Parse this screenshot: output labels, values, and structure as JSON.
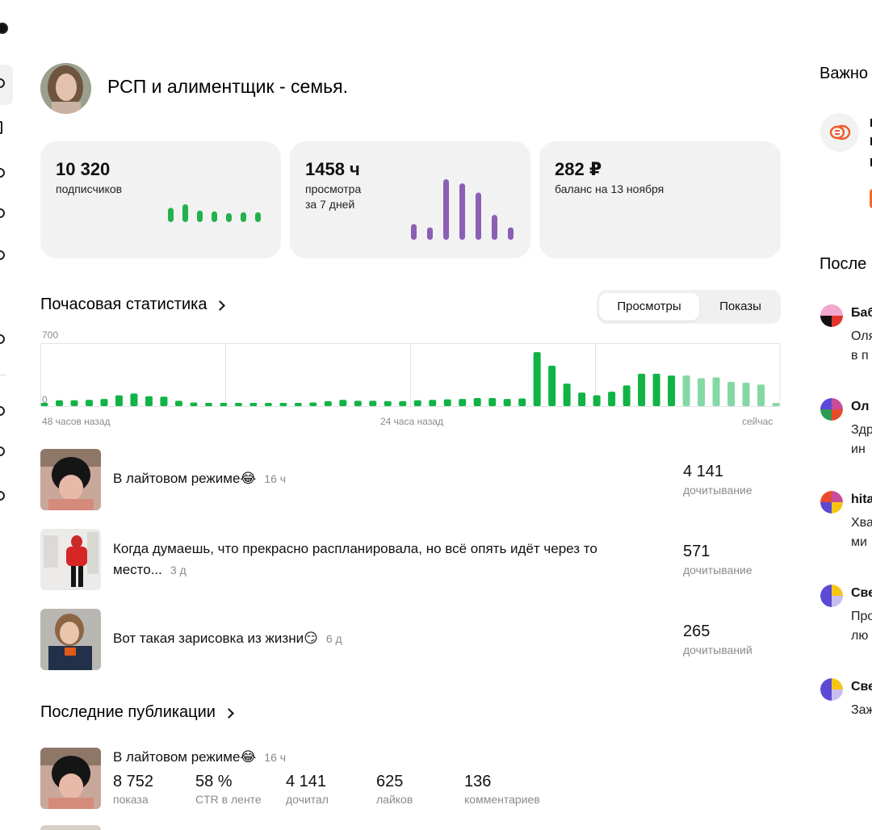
{
  "channel": {
    "title": "РСП и алиментщик - семья."
  },
  "cards": {
    "subscribers": {
      "value": "10 320",
      "label": "подписчиков"
    },
    "views": {
      "value": "1458 ч",
      "label_line1": "просмотра",
      "label_line2": "за 7 дней"
    },
    "balance": {
      "value": "282 ₽",
      "label": "баланс на 13 ноября"
    }
  },
  "hourly": {
    "title": "Почасовая статистика",
    "tabs": {
      "views": "Просмотры",
      "impressions": "Показы"
    },
    "active_tab": "views",
    "x_start": "48 часов назад",
    "x_mid": "24 часа назад",
    "x_end": "сейчас"
  },
  "chart_data": {
    "type": "bar",
    "ylim": [
      0,
      700
    ],
    "y_ticks": [
      "700",
      "0"
    ],
    "grid": true,
    "values": [
      30,
      65,
      65,
      70,
      80,
      120,
      140,
      110,
      105,
      60,
      40,
      35,
      30,
      30,
      30,
      30,
      30,
      35,
      40,
      55,
      70,
      60,
      60,
      55,
      55,
      65,
      70,
      75,
      80,
      90,
      90,
      80,
      85,
      600,
      450,
      250,
      150,
      120,
      160,
      230,
      360,
      360,
      340,
      340,
      310,
      320,
      270,
      260,
      240,
      30
    ],
    "faded_from_index": 43,
    "colors": {
      "primary": "#10b446",
      "faded": "#84d8a4"
    }
  },
  "popular_posts": [
    {
      "text": "В лайтовом режиме😂",
      "age": "16 ч",
      "count": "4 141",
      "count_label": "дочитывание"
    },
    {
      "text": "Когда думаешь, что прекрасно распланировала, но всё опять идёт через то место...",
      "age": "3 д",
      "count": "571",
      "count_label": "дочитывание"
    },
    {
      "text": "Вот такая зарисовка из жизни😏",
      "age": "6 д",
      "count": "265",
      "count_label": "дочитываний"
    }
  ],
  "latest": {
    "title": "Последние публикации",
    "post": {
      "title": "В лайтовом режиме😂",
      "age": "16 ч",
      "impressions": "8 752",
      "impressions_label": "показа",
      "ctr": "58 %",
      "ctr_label": "CTR в ленте",
      "reads": "4 141",
      "reads_label": "дочитал",
      "likes": "625",
      "likes_label": "лайков",
      "comments": "136",
      "comments_label": "комментариев"
    }
  },
  "right_panel": {
    "important_title": "Важно",
    "recent_title": "После",
    "comments": [
      {
        "name": "Баб",
        "line1": "Оля",
        "line2": "в п"
      },
      {
        "name": "Ол",
        "line1": "Здр",
        "line2": "ин"
      },
      {
        "name": "hita",
        "line1": "Хва",
        "line2": "ми"
      },
      {
        "name": "Све",
        "line1": "Про",
        "line2": "лю"
      },
      {
        "name": "Све",
        "line1": "Заж"
      }
    ]
  },
  "colors": {
    "subscribers_spark": "#22b24c",
    "views_spark": "#8b5fb3",
    "card_bg": "#f2f2f2"
  },
  "subscribers_spark": [
    16,
    20,
    13,
    12,
    10,
    11,
    11
  ],
  "views_spark": [
    19,
    15,
    73,
    68,
    57,
    30,
    15
  ]
}
